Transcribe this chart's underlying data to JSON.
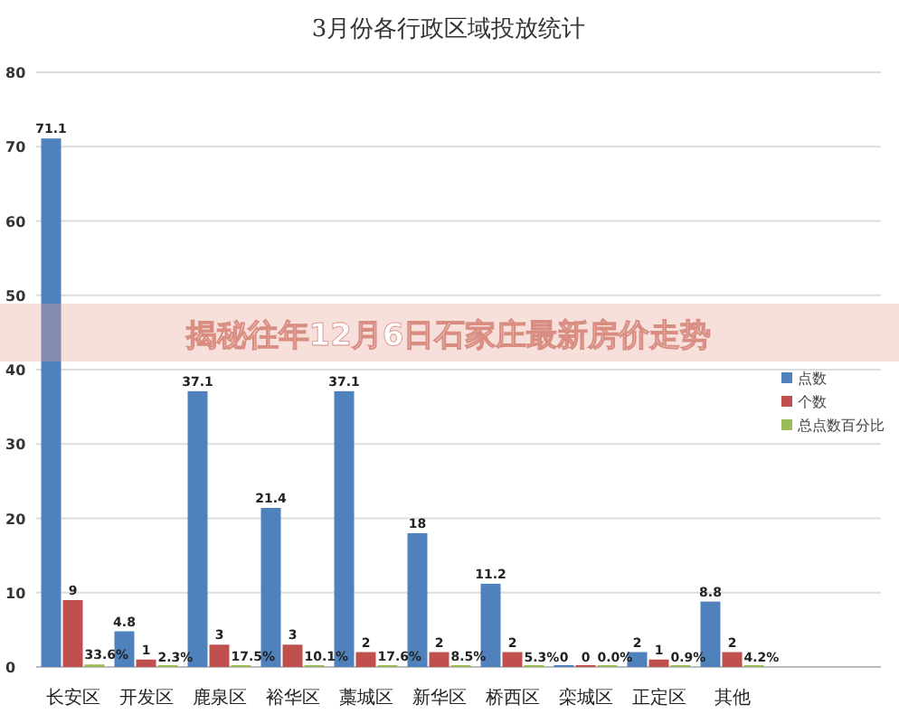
{
  "chart_data": {
    "type": "bar",
    "title": "3月份各行政区域投放统计",
    "categories": [
      "长安区",
      "开发区",
      "鹿泉区",
      "裕华区",
      "藁城区",
      "新华区",
      "桥西区",
      "栾城区",
      "正定区",
      "其他"
    ],
    "series": [
      {
        "name": "点数",
        "color": "#4f81bd",
        "values": [
          71.1,
          4.8,
          37.1,
          21.4,
          37.1,
          18,
          11.2,
          0,
          2,
          8.8
        ],
        "value_labels": [
          "71.1",
          "4.8",
          "37.1",
          "21.4",
          "37.1",
          "18",
          "11.2",
          "0",
          "2",
          "8.8"
        ]
      },
      {
        "name": "个数",
        "color": "#c0504d",
        "values": [
          9,
          1,
          3,
          3,
          2,
          2,
          2,
          0,
          1,
          2
        ],
        "value_labels": [
          "9",
          "1",
          "3",
          "3",
          "2",
          "2",
          "2",
          "0",
          "1",
          "2"
        ]
      },
      {
        "name": "总点数百分比",
        "color": "#9bbb59",
        "values": [
          0.336,
          0.023,
          0.175,
          0.101,
          0.176,
          0.085,
          0.053,
          0,
          0.009,
          0.042
        ],
        "value_labels": [
          "33.6%",
          "2.3%",
          "17.5%",
          "10.1%",
          "17.6%",
          "8.5%",
          "5.3%",
          "0.0%",
          "0.9%",
          "4.2%"
        ]
      }
    ],
    "ylim": [
      0,
      80
    ],
    "yticks": [
      0,
      10,
      20,
      30,
      40,
      50,
      60,
      70,
      80
    ],
    "grid": "y",
    "legend": "right",
    "annotations": [
      "揭秘往年12月6日石家庄最新房价走势"
    ]
  }
}
